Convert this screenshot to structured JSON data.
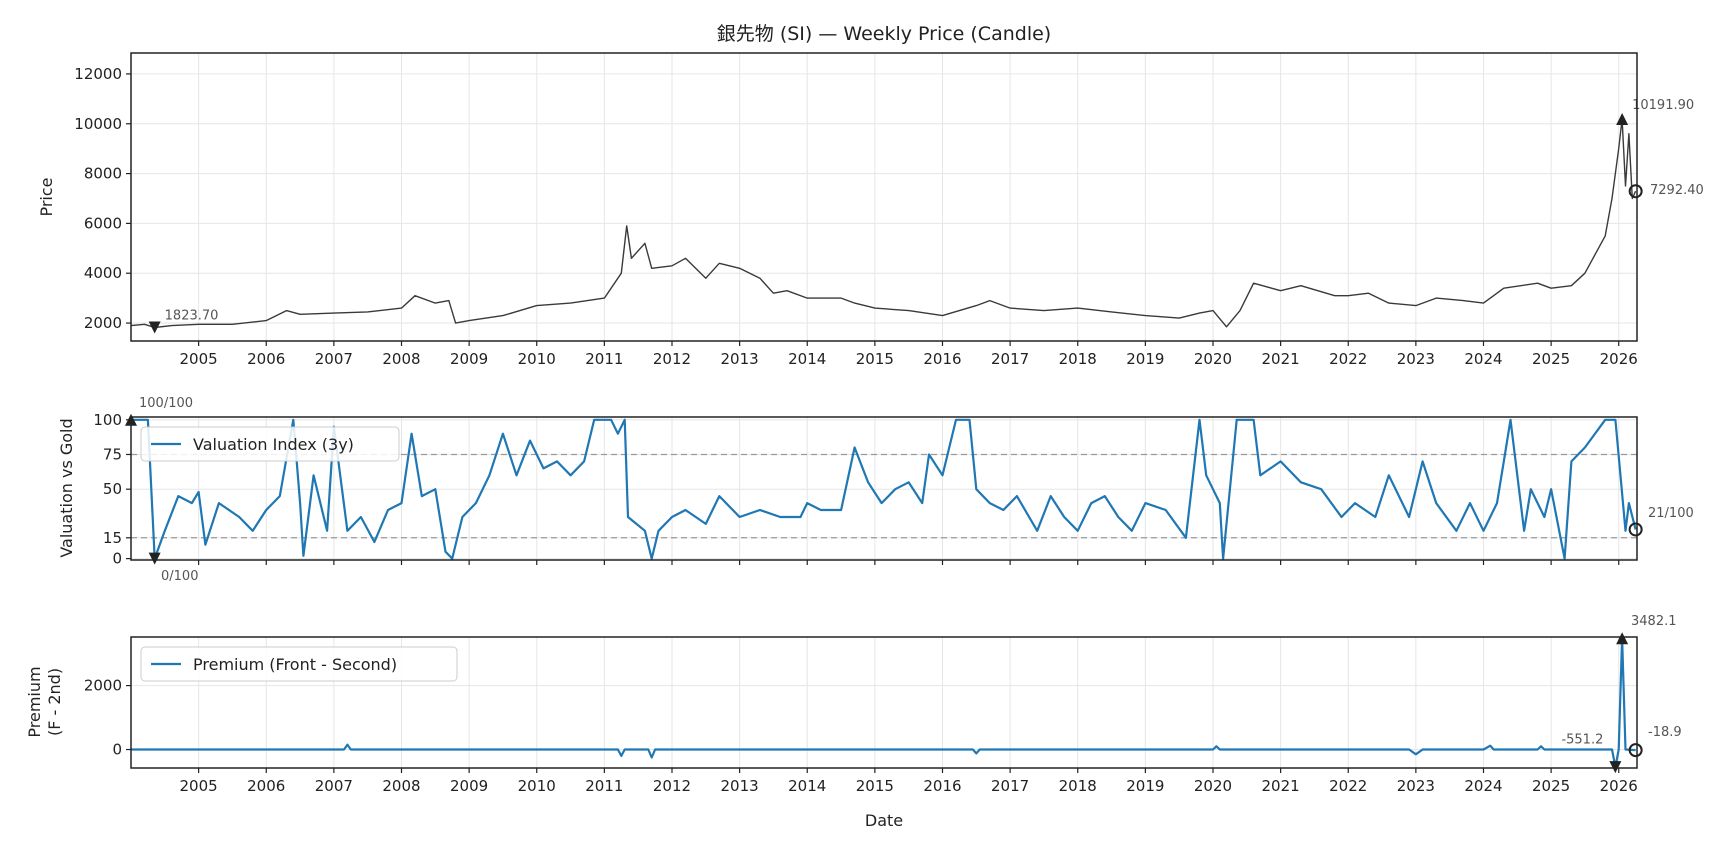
{
  "chart_data": [
    {
      "type": "line",
      "subtype": "candlestick",
      "title": "銀先物 (SI) — Weekly Price (Candle)",
      "ylabel": "Price",
      "xlabel": "",
      "xlim": [
        2004.0,
        2026.27
      ],
      "ylim": [
        1280,
        12840
      ],
      "xticks": [
        "2005",
        "2006",
        "2007",
        "2008",
        "2009",
        "2010",
        "2011",
        "2012",
        "2013",
        "2014",
        "2015",
        "2016",
        "2017",
        "2018",
        "2019",
        "2020",
        "2021",
        "2022",
        "2023",
        "2024",
        "2025",
        "2026"
      ],
      "yticks": [
        2000,
        4000,
        6000,
        8000,
        10000,
        12000
      ],
      "grid": true,
      "color": "#3a3a3a",
      "x": [
        2004.0,
        2004.2,
        2004.35,
        2004.6,
        2005.0,
        2005.5,
        2006.0,
        2006.3,
        2006.5,
        2007.0,
        2007.5,
        2008.0,
        2008.2,
        2008.5,
        2008.7,
        2008.8,
        2009.0,
        2009.5,
        2010.0,
        2010.5,
        2011.0,
        2011.25,
        2011.33,
        2011.4,
        2011.6,
        2011.7,
        2012.0,
        2012.2,
        2012.5,
        2012.7,
        2013.0,
        2013.3,
        2013.5,
        2013.7,
        2014.0,
        2014.5,
        2014.7,
        2015.0,
        2015.5,
        2016.0,
        2016.5,
        2016.7,
        2017.0,
        2017.5,
        2018.0,
        2018.5,
        2019.0,
        2019.5,
        2019.8,
        2020.0,
        2020.2,
        2020.4,
        2020.6,
        2021.0,
        2021.3,
        2021.8,
        2022.0,
        2022.3,
        2022.6,
        2023.0,
        2023.3,
        2023.7,
        2024.0,
        2024.3,
        2024.8,
        2025.0,
        2025.3,
        2025.5,
        2025.8,
        2025.9,
        2026.0,
        2026.05,
        2026.1,
        2026.15,
        2026.2,
        2026.25
      ],
      "values": [
        1900,
        1950,
        1823.7,
        1900,
        1950,
        1950,
        2100,
        2500,
        2350,
        2400,
        2450,
        2600,
        3100,
        2800,
        2900,
        2000,
        2100,
        2300,
        2700,
        2800,
        3000,
        4000,
        5900,
        4600,
        5200,
        4200,
        4300,
        4600,
        3800,
        4400,
        4200,
        3800,
        3200,
        3300,
        3000,
        3000,
        2800,
        2600,
        2500,
        2300,
        2700,
        2900,
        2600,
        2500,
        2600,
        2450,
        2300,
        2200,
        2400,
        2500,
        1850,
        2500,
        3600,
        3300,
        3500,
        3100,
        3100,
        3200,
        2800,
        2700,
        3000,
        2900,
        2800,
        3400,
        3600,
        3400,
        3500,
        4000,
        5500,
        7000,
        9000,
        10191.9,
        7500,
        9600,
        7000,
        7292.4
      ],
      "annotations": {
        "min": "1823.70",
        "max": "10191.90",
        "last": "7292.40"
      }
    },
    {
      "type": "line",
      "ylabel": "Valuation vs Gold",
      "xlim": [
        2004.0,
        2026.27
      ],
      "ylim": [
        -1,
        102
      ],
      "yticks": [
        0,
        15,
        50,
        75,
        100
      ],
      "reference_lines": [
        15,
        75
      ],
      "grid": true,
      "legend": "upper-left",
      "color": "#1f77b4",
      "series": [
        {
          "name": "Valuation Index (3y)",
          "x": [
            2004.0,
            2004.25,
            2004.35,
            2004.5,
            2004.7,
            2004.9,
            2005.0,
            2005.1,
            2005.3,
            2005.6,
            2005.8,
            2006.0,
            2006.2,
            2006.4,
            2006.5,
            2006.55,
            2006.7,
            2006.9,
            2007.0,
            2007.2,
            2007.4,
            2007.6,
            2007.8,
            2008.0,
            2008.15,
            2008.3,
            2008.5,
            2008.65,
            2008.75,
            2008.9,
            2009.1,
            2009.3,
            2009.5,
            2009.7,
            2009.9,
            2010.1,
            2010.3,
            2010.5,
            2010.7,
            2010.85,
            2011.1,
            2011.2,
            2011.3,
            2011.35,
            2011.6,
            2011.7,
            2011.8,
            2012.0,
            2012.2,
            2012.5,
            2012.7,
            2013.0,
            2013.3,
            2013.6,
            2013.9,
            2014.0,
            2014.2,
            2014.5,
            2014.7,
            2014.9,
            2015.1,
            2015.3,
            2015.5,
            2015.7,
            2015.8,
            2016.0,
            2016.2,
            2016.4,
            2016.5,
            2016.7,
            2016.9,
            2017.1,
            2017.4,
            2017.6,
            2017.8,
            2018.0,
            2018.2,
            2018.4,
            2018.6,
            2018.8,
            2019.0,
            2019.3,
            2019.6,
            2019.8,
            2019.9,
            2020.1,
            2020.15,
            2020.35,
            2020.6,
            2020.7,
            2021.0,
            2021.3,
            2021.6,
            2021.9,
            2022.1,
            2022.4,
            2022.6,
            2022.9,
            2023.1,
            2023.3,
            2023.6,
            2023.8,
            2024.0,
            2024.2,
            2024.3,
            2024.4,
            2024.6,
            2024.7,
            2024.9,
            2025.0,
            2025.2,
            2025.3,
            2025.5,
            2025.8,
            2025.95,
            2026.1,
            2026.15,
            2026.25
          ],
          "values": [
            100,
            100,
            0,
            20,
            45,
            40,
            48,
            10,
            40,
            30,
            20,
            35,
            45,
            100,
            40,
            2,
            60,
            20,
            95,
            20,
            30,
            12,
            35,
            40,
            90,
            45,
            50,
            5,
            0,
            30,
            40,
            60,
            90,
            60,
            85,
            65,
            70,
            60,
            70,
            100,
            100,
            90,
            100,
            30,
            20,
            0,
            20,
            30,
            35,
            25,
            45,
            30,
            35,
            30,
            30,
            40,
            35,
            35,
            80,
            55,
            40,
            50,
            55,
            40,
            75,
            60,
            100,
            100,
            50,
            40,
            35,
            45,
            20,
            45,
            30,
            20,
            40,
            45,
            30,
            20,
            40,
            35,
            15,
            100,
            60,
            40,
            0,
            100,
            100,
            60,
            70,
            55,
            50,
            30,
            40,
            30,
            60,
            30,
            70,
            40,
            20,
            40,
            20,
            40,
            70,
            100,
            20,
            50,
            30,
            50,
            0,
            70,
            80,
            100,
            100,
            20,
            40,
            21
          ]
        }
      ],
      "annotations": {
        "max": "100/100",
        "min": "0/100",
        "last": "21/100"
      }
    },
    {
      "type": "line",
      "ylabel": "Premium\n(F - 2nd)",
      "ylabel_lines": [
        "Premium",
        "(F - 2nd)"
      ],
      "xlabel": "Date",
      "xlim": [
        2004.0,
        2026.27
      ],
      "ylim": [
        -578,
        3520
      ],
      "yticks": [
        0,
        2000
      ],
      "xticks": [
        "2005",
        "2006",
        "2007",
        "2008",
        "2009",
        "2010",
        "2011",
        "2012",
        "2013",
        "2014",
        "2015",
        "2016",
        "2017",
        "2018",
        "2019",
        "2020",
        "2021",
        "2022",
        "2023",
        "2024",
        "2025",
        "2026"
      ],
      "grid": true,
      "legend": "upper-left",
      "color": "#1f77b4",
      "series": [
        {
          "name": "Premium (Front - Second)",
          "x": [
            2004.0,
            2005.0,
            2006.0,
            2007.15,
            2007.2,
            2007.25,
            2008.0,
            2009.0,
            2010.0,
            2011.2,
            2011.25,
            2011.3,
            2011.65,
            2011.7,
            2011.75,
            2013.0,
            2015.0,
            2016.45,
            2016.5,
            2016.55,
            2018.0,
            2020.0,
            2020.05,
            2020.1,
            2021.0,
            2022.0,
            2022.9,
            2023.0,
            2023.1,
            2024.0,
            2024.1,
            2024.15,
            2024.8,
            2024.85,
            2024.9,
            2025.5,
            2025.9,
            2025.95,
            2026.0,
            2026.05,
            2026.1,
            2026.25
          ],
          "values": [
            0,
            0,
            0,
            0,
            150,
            0,
            0,
            0,
            0,
            0,
            -200,
            0,
            0,
            -250,
            0,
            0,
            0,
            0,
            -120,
            0,
            0,
            0,
            100,
            0,
            0,
            0,
            0,
            -150,
            0,
            0,
            120,
            0,
            0,
            100,
            0,
            0,
            0,
            -551.2,
            0,
            3482.1,
            0,
            -18.9
          ]
        }
      ],
      "annotations": {
        "max": "3482.1",
        "min": "-551.2",
        "last": "-18.9"
      }
    }
  ]
}
